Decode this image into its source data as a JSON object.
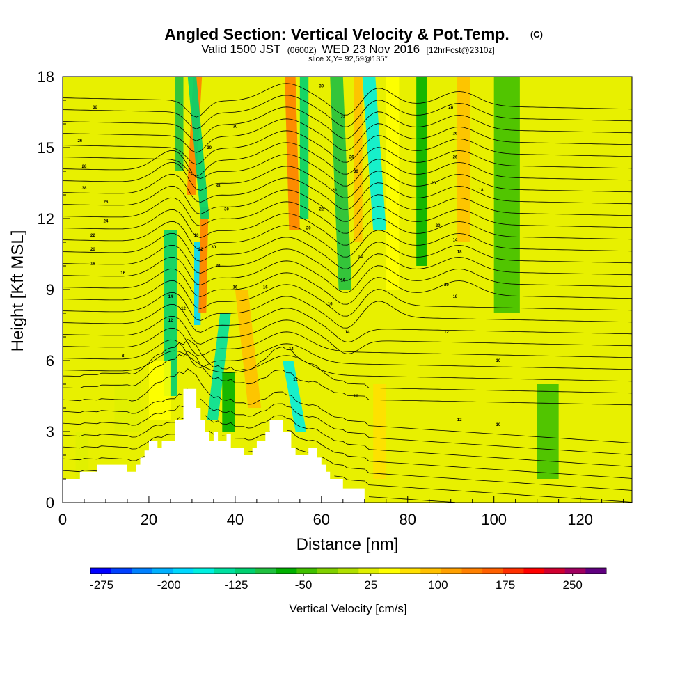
{
  "chart_data": {
    "type": "heatmap",
    "title": "Angled Section: Vertical Velocity & Pot.Temp.",
    "title_unit": "(C)",
    "subtitle": {
      "part1": "Valid 1500 JST",
      "part2": "(0600Z)",
      "part3": "WED 23 Nov 2016",
      "part4": "[12hrFcst@2310z]"
    },
    "slice_info": "slice X,Y= 92,59@135°",
    "xlabel": "Distance [nm]",
    "ylabel": "Height [Kft MSL]",
    "xlim": [
      0,
      132
    ],
    "ylim": [
      0,
      18
    ],
    "xticks": [
      0,
      20,
      40,
      60,
      80,
      100,
      120
    ],
    "xtick_labels": [
      "0",
      "20",
      "40",
      "60",
      "80",
      "100",
      "120"
    ],
    "yticks": [
      0,
      3,
      6,
      9,
      12,
      15,
      18
    ],
    "ytick_labels": [
      "0",
      "3",
      "6",
      "9",
      "12",
      "15",
      "18"
    ],
    "colorbar": {
      "label": "Vertical Velocity [cm/s]",
      "min": -287.5,
      "max": 287.5,
      "step": 25,
      "tick_values": [
        -275,
        -200,
        -125,
        -50,
        25,
        100,
        175,
        250
      ],
      "tick_labels": [
        "-275",
        "-200",
        "-125",
        "-50",
        "25",
        "100",
        "175",
        "250"
      ],
      "colors": [
        "#0000ff",
        "#0040ff",
        "#0080ff",
        "#00b0ff",
        "#00d8ff",
        "#00f0e0",
        "#00e0a0",
        "#00d070",
        "#20c040",
        "#00b000",
        "#40c000",
        "#80d000",
        "#b0e000",
        "#e0f000",
        "#ffff00",
        "#ffe000",
        "#ffc000",
        "#ffa000",
        "#ff8000",
        "#ff6000",
        "#ff3000",
        "#ff0000",
        "#d00030",
        "#a00060",
        "#600080"
      ]
    },
    "background_color": "#e8f000",
    "bands": [
      {
        "x": 23.5,
        "w": 3.0,
        "y0": 4.5,
        "y1": 11.5,
        "top_shift": 0,
        "value": -100
      },
      {
        "x": 26.0,
        "w": 2.0,
        "y0": 14.0,
        "y1": 18.0,
        "top_shift": 0,
        "value": -75
      },
      {
        "x": 28.8,
        "w": 2.0,
        "y0": 13.0,
        "y1": 18.0,
        "top_shift": 1.5,
        "value": 175
      },
      {
        "x": 30.5,
        "w": 1.5,
        "y0": 7.5,
        "y1": 11.0,
        "top_shift": 0,
        "value": -175
      },
      {
        "x": 31.5,
        "w": 1.8,
        "y0": 8.0,
        "y1": 12.5,
        "top_shift": 0.5,
        "value": 175
      },
      {
        "x": 33.5,
        "w": 2.5,
        "y0": 3.5,
        "y1": 8.0,
        "top_shift": 3.0,
        "value": -125
      },
      {
        "x": 32.0,
        "w": 2.0,
        "y0": 12.0,
        "y1": 18.0,
        "top_shift": -3.0,
        "value": -100
      },
      {
        "x": 37.0,
        "w": 3.0,
        "y0": 3.0,
        "y1": 5.5,
        "top_shift": 0,
        "value": -50
      },
      {
        "x": 43.0,
        "w": 3.0,
        "y0": 4.0,
        "y1": 9.0,
        "top_shift": -3.0,
        "value": 125
      },
      {
        "x": 52.5,
        "w": 2.5,
        "y0": 11.5,
        "y1": 18.0,
        "top_shift": -1.0,
        "value": 175
      },
      {
        "x": 55.0,
        "w": 2.0,
        "y0": 12.0,
        "y1": 18.0,
        "top_shift": 0,
        "value": -100
      },
      {
        "x": 54.0,
        "w": 2.5,
        "y0": 3.0,
        "y1": 6.0,
        "top_shift": -3.0,
        "value": -150
      },
      {
        "x": 64.0,
        "w": 3.0,
        "y0": 9.0,
        "y1": 18.0,
        "top_shift": -2.0,
        "value": -75
      },
      {
        "x": 67.5,
        "w": 2.0,
        "y0": 11.0,
        "y1": 18.0,
        "top_shift": 0,
        "value": 125
      },
      {
        "x": 72.0,
        "w": 3.0,
        "y0": 11.5,
        "y1": 18.0,
        "top_shift": -2.5,
        "value": -150
      },
      {
        "x": 75.0,
        "w": 3.0,
        "y0": 9.0,
        "y1": 18.0,
        "top_shift": 0,
        "value": 75
      },
      {
        "x": 72.0,
        "w": 3.0,
        "y0": 1.0,
        "y1": 5.0,
        "top_shift": 0,
        "value": 100
      },
      {
        "x": 82.0,
        "w": 2.5,
        "y0": 10.0,
        "y1": 18.0,
        "top_shift": 0,
        "value": -50
      },
      {
        "x": 91.5,
        "w": 3.0,
        "y0": 11.0,
        "y1": 18.0,
        "top_shift": 0,
        "value": 125
      },
      {
        "x": 100.0,
        "w": 6.0,
        "y0": 8.0,
        "y1": 18.0,
        "top_shift": 0,
        "value": -25
      },
      {
        "x": 110.0,
        "w": 5.0,
        "y0": 1.0,
        "y1": 5.0,
        "top_shift": 0,
        "value": -25
      },
      {
        "x": 20.0,
        "w": 5.0,
        "y0": 3.5,
        "y1": 6.0,
        "top_shift": 0,
        "value": 75
      },
      {
        "x": 12.0,
        "w": 6.0,
        "y0": 3.0,
        "y1": 5.0,
        "top_shift": 0,
        "value": 50
      },
      {
        "x": 3.0,
        "w": 3.0,
        "y0": 1.0,
        "y1": 3.0,
        "top_shift": 0,
        "value": 50
      }
    ],
    "terrain": [
      [
        0,
        1.0
      ],
      [
        4,
        1.0
      ],
      [
        4,
        1.3
      ],
      [
        8,
        1.3
      ],
      [
        8,
        1.6
      ],
      [
        15,
        1.6
      ],
      [
        15,
        1.3
      ],
      [
        17,
        1.3
      ],
      [
        17,
        1.6
      ],
      [
        18,
        1.6
      ],
      [
        18,
        1.9
      ],
      [
        19,
        1.9
      ],
      [
        19,
        2.2
      ],
      [
        20,
        2.2
      ],
      [
        20,
        2.6
      ],
      [
        22,
        2.6
      ],
      [
        22,
        2.3
      ],
      [
        23,
        2.3
      ],
      [
        23,
        2.6
      ],
      [
        26,
        2.6
      ],
      [
        26,
        3.5
      ],
      [
        28,
        3.5
      ],
      [
        28,
        4.8
      ],
      [
        31,
        4.8
      ],
      [
        31,
        4.0
      ],
      [
        32,
        4.0
      ],
      [
        32,
        3.5
      ],
      [
        33,
        3.5
      ],
      [
        33,
        3.0
      ],
      [
        34,
        3.0
      ],
      [
        34,
        2.6
      ],
      [
        35,
        2.6
      ],
      [
        35,
        3.0
      ],
      [
        36,
        3.0
      ],
      [
        36,
        2.6
      ],
      [
        38,
        2.6
      ],
      [
        38,
        2.9
      ],
      [
        39,
        2.9
      ],
      [
        39,
        2.3
      ],
      [
        42,
        2.3
      ],
      [
        42,
        2.0
      ],
      [
        44,
        2.0
      ],
      [
        44,
        2.3
      ],
      [
        45,
        2.3
      ],
      [
        45,
        2.6
      ],
      [
        47,
        2.6
      ],
      [
        47,
        3.0
      ],
      [
        48,
        3.0
      ],
      [
        48,
        3.5
      ],
      [
        51,
        3.5
      ],
      [
        51,
        3.0
      ],
      [
        53,
        3.0
      ],
      [
        53,
        2.3
      ],
      [
        54,
        2.3
      ],
      [
        54,
        2.0
      ],
      [
        57,
        2.0
      ],
      [
        57,
        2.3
      ],
      [
        59,
        2.3
      ],
      [
        59,
        1.9
      ],
      [
        60,
        1.9
      ],
      [
        60,
        1.6
      ],
      [
        61,
        1.6
      ],
      [
        61,
        1.3
      ],
      [
        62,
        1.3
      ],
      [
        62,
        1.0
      ],
      [
        65,
        1.0
      ],
      [
        65,
        0.6
      ],
      [
        70,
        0.6
      ],
      [
        70,
        0
      ],
      [
        132,
        0
      ]
    ],
    "theta_labels": [
      {
        "x": 7.5,
        "y": 16.7,
        "text": "30"
      },
      {
        "x": 4.0,
        "y": 15.3,
        "text": "26"
      },
      {
        "x": 5.0,
        "y": 14.2,
        "text": "28"
      },
      {
        "x": 5.0,
        "y": 13.3,
        "text": "38"
      },
      {
        "x": 10.0,
        "y": 12.7,
        "text": "26"
      },
      {
        "x": 10.0,
        "y": 11.9,
        "text": "24"
      },
      {
        "x": 7.0,
        "y": 11.3,
        "text": "22"
      },
      {
        "x": 7.0,
        "y": 10.7,
        "text": "20"
      },
      {
        "x": 7.0,
        "y": 10.1,
        "text": "18"
      },
      {
        "x": 14.0,
        "y": 9.7,
        "text": "16"
      },
      {
        "x": 14.0,
        "y": 6.2,
        "text": "8"
      },
      {
        "x": 25.0,
        "y": 8.7,
        "text": "14"
      },
      {
        "x": 25.0,
        "y": 7.7,
        "text": "12"
      },
      {
        "x": 28.0,
        "y": 8.2,
        "text": "12"
      },
      {
        "x": 31.0,
        "y": 11.3,
        "text": "10"
      },
      {
        "x": 32.0,
        "y": 10.7,
        "text": "22"
      },
      {
        "x": 35.0,
        "y": 10.8,
        "text": "30"
      },
      {
        "x": 36.0,
        "y": 10.0,
        "text": "20"
      },
      {
        "x": 36.0,
        "y": 13.4,
        "text": "38"
      },
      {
        "x": 38.0,
        "y": 12.4,
        "text": "30"
      },
      {
        "x": 40.0,
        "y": 15.9,
        "text": "30"
      },
      {
        "x": 34.0,
        "y": 15.0,
        "text": "30"
      },
      {
        "x": 40.0,
        "y": 9.1,
        "text": "16"
      },
      {
        "x": 47.0,
        "y": 9.1,
        "text": "16"
      },
      {
        "x": 60.0,
        "y": 17.6,
        "text": "30"
      },
      {
        "x": 65.0,
        "y": 16.3,
        "text": "22"
      },
      {
        "x": 67.0,
        "y": 14.6,
        "text": "26"
      },
      {
        "x": 68.0,
        "y": 14.0,
        "text": "30"
      },
      {
        "x": 63.0,
        "y": 13.2,
        "text": "20"
      },
      {
        "x": 60.0,
        "y": 12.4,
        "text": "22"
      },
      {
        "x": 57.0,
        "y": 11.6,
        "text": "20"
      },
      {
        "x": 65.0,
        "y": 9.4,
        "text": "16"
      },
      {
        "x": 62.0,
        "y": 8.4,
        "text": "16"
      },
      {
        "x": 66.0,
        "y": 7.2,
        "text": "14"
      },
      {
        "x": 53.0,
        "y": 6.5,
        "text": "14"
      },
      {
        "x": 54.0,
        "y": 5.2,
        "text": "12"
      },
      {
        "x": 68.0,
        "y": 4.5,
        "text": "10"
      },
      {
        "x": 69.0,
        "y": 10.4,
        "text": "14"
      },
      {
        "x": 90.0,
        "y": 16.7,
        "text": "28"
      },
      {
        "x": 91.0,
        "y": 15.6,
        "text": "26"
      },
      {
        "x": 91.0,
        "y": 14.6,
        "text": "26"
      },
      {
        "x": 86.0,
        "y": 13.5,
        "text": "20"
      },
      {
        "x": 97.0,
        "y": 13.2,
        "text": "18"
      },
      {
        "x": 87.0,
        "y": 11.7,
        "text": "20"
      },
      {
        "x": 91.0,
        "y": 11.1,
        "text": "14"
      },
      {
        "x": 92.0,
        "y": 10.6,
        "text": "18"
      },
      {
        "x": 89.0,
        "y": 9.2,
        "text": "20"
      },
      {
        "x": 91.0,
        "y": 8.7,
        "text": "18"
      },
      {
        "x": 89.0,
        "y": 7.2,
        "text": "12"
      },
      {
        "x": 101.0,
        "y": 6.0,
        "text": "10"
      },
      {
        "x": 92.0,
        "y": 3.5,
        "text": "12"
      },
      {
        "x": 101.0,
        "y": 3.3,
        "text": "10"
      }
    ]
  }
}
